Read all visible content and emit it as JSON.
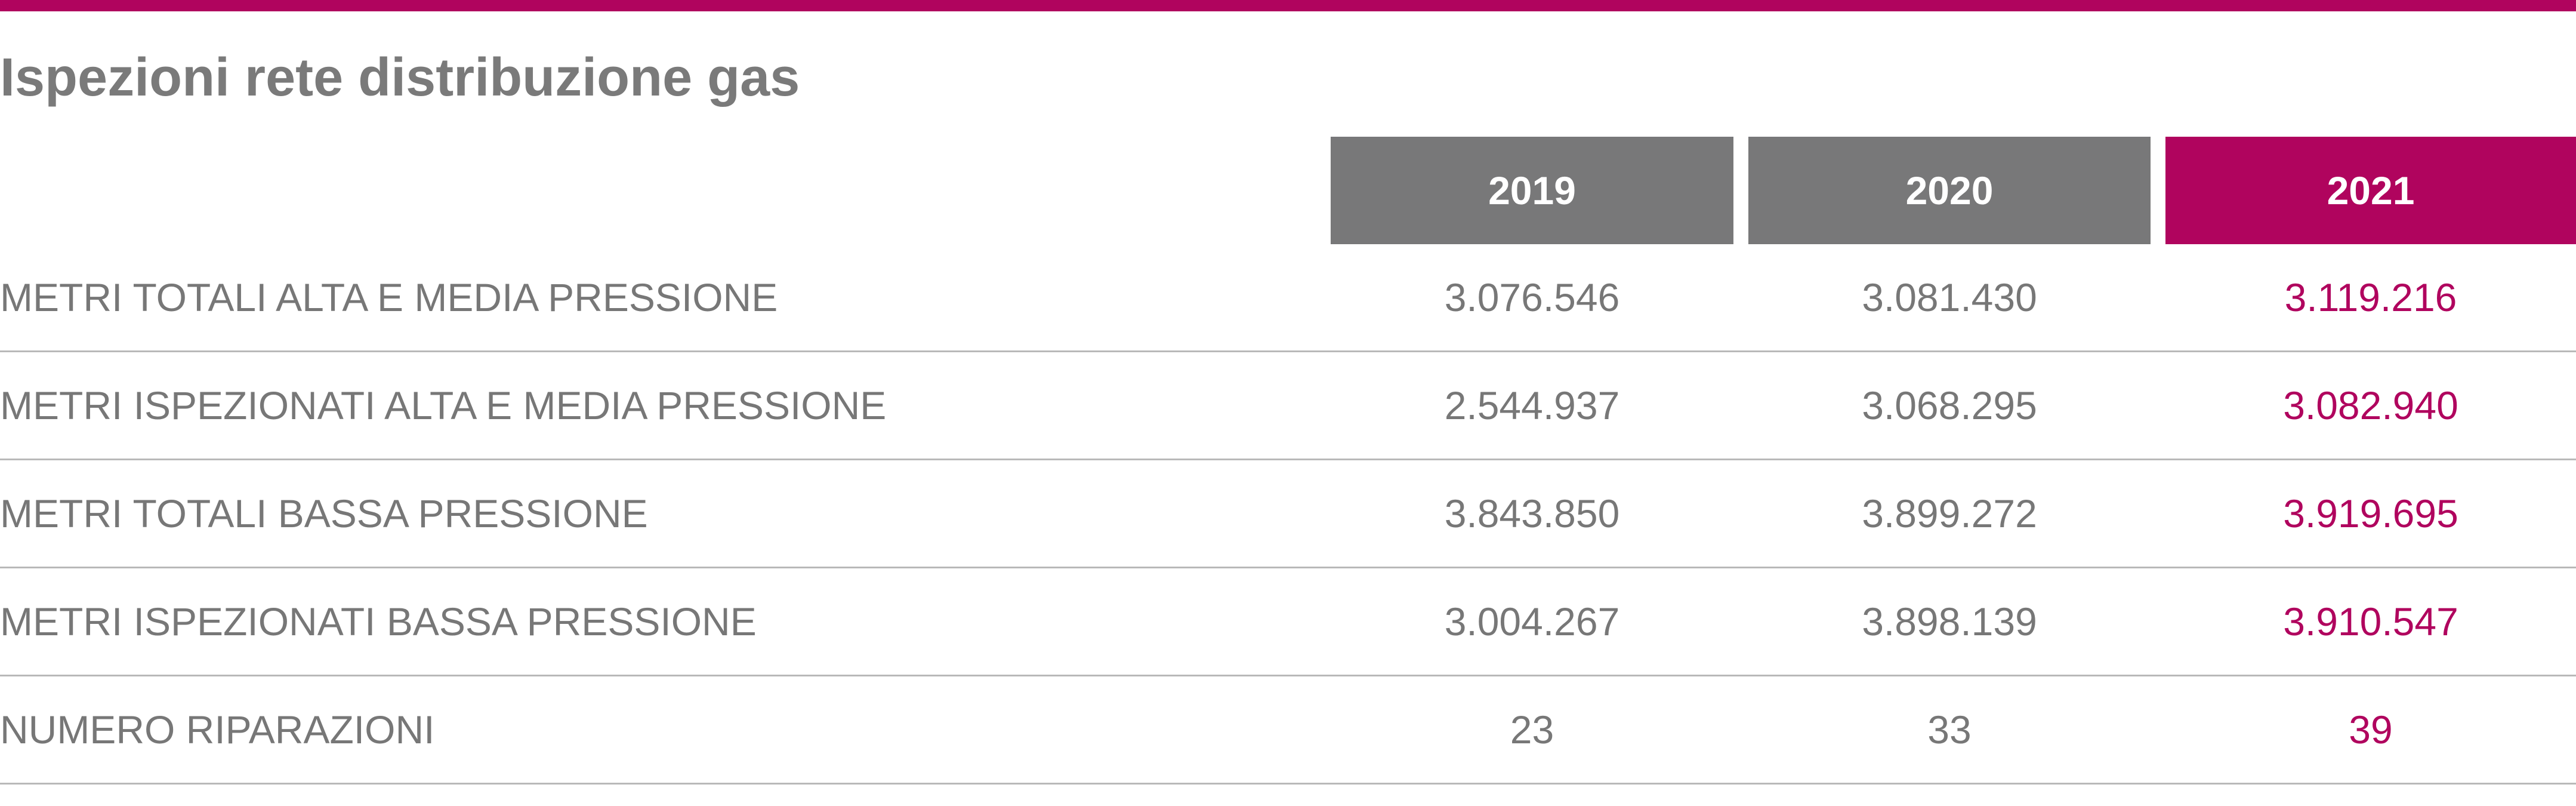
{
  "title": "Ispezioni rete distribuzione gas",
  "colors": {
    "accent": "#b0045e",
    "header_grey": "#787879",
    "text_grey": "#777777",
    "rule": "#b9b9b9"
  },
  "table": {
    "headers": [
      "2019",
      "2020",
      "2021"
    ],
    "rows": [
      {
        "label": "METRI TOTALI ALTA E MEDIA PRESSIONE",
        "values": [
          "3.076.546",
          "3.081.430",
          "3.119.216"
        ]
      },
      {
        "label": "METRI ISPEZIONATI ALTA E MEDIA PRESSIONE",
        "values": [
          "2.544.937",
          "3.068.295",
          "3.082.940"
        ]
      },
      {
        "label": "METRI TOTALI BASSA PRESSIONE",
        "values": [
          "3.843.850",
          "3.899.272",
          "3.919.695"
        ]
      },
      {
        "label": "METRI ISPEZIONATI BASSA PRESSIONE",
        "values": [
          "3.004.267",
          "3.898.139",
          "3.910.547"
        ]
      },
      {
        "label": "NUMERO RIPARAZIONI",
        "values": [
          "23",
          "33",
          "39"
        ]
      }
    ]
  }
}
